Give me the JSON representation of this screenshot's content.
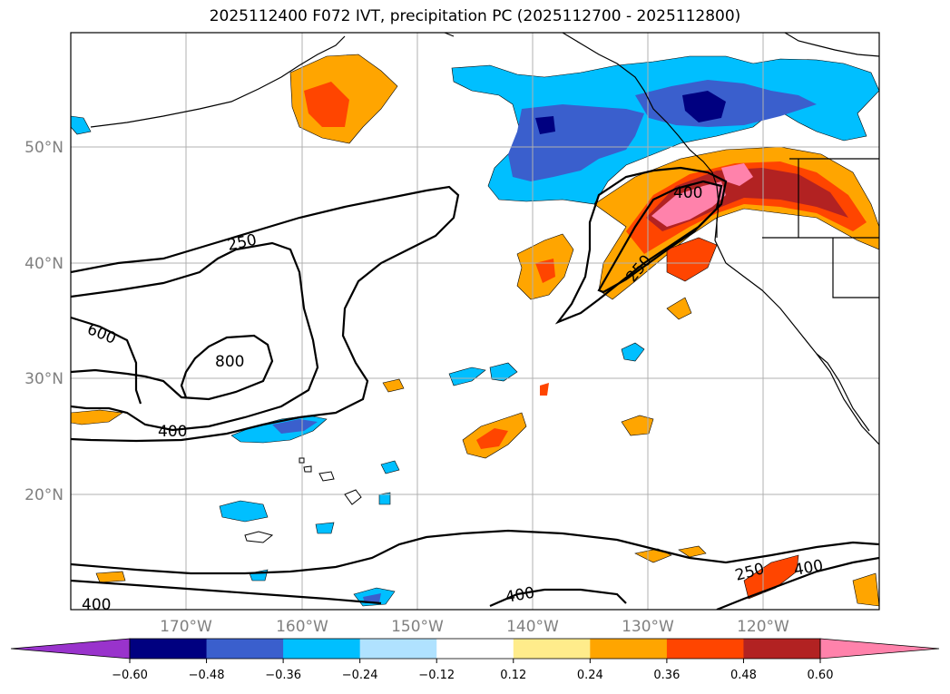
{
  "title": "2025112400 F072 IVT, precipitation PC (2025112700 - 2025112800)",
  "lat_labels": [
    "50°N",
    "40°N",
    "30°N",
    "20°N"
  ],
  "lon_labels": [
    "170°W",
    "160°W",
    "150°W",
    "140°W",
    "130°W",
    "120°W"
  ],
  "contour_labels": {
    "c250a": "250",
    "c250b": "250",
    "c250c": "250",
    "c400a": "400",
    "c400b": "400",
    "c400c": "400",
    "c400d": "400",
    "c400e": "400",
    "c600": "600",
    "c800": "800"
  },
  "colorbar": {
    "ticks": [
      "−0.60",
      "−0.48",
      "−0.36",
      "−0.24",
      "−0.12",
      "0.12",
      "0.24",
      "0.36",
      "0.48",
      "0.60"
    ],
    "colors": [
      "#9933cc",
      "#000080",
      "#3a5fcd",
      "#00bfff",
      "#b0e2ff",
      "#ffffff",
      "#ffec8b",
      "#ffa500",
      "#ff4500",
      "#b22222",
      "#ff82ab"
    ]
  }
}
